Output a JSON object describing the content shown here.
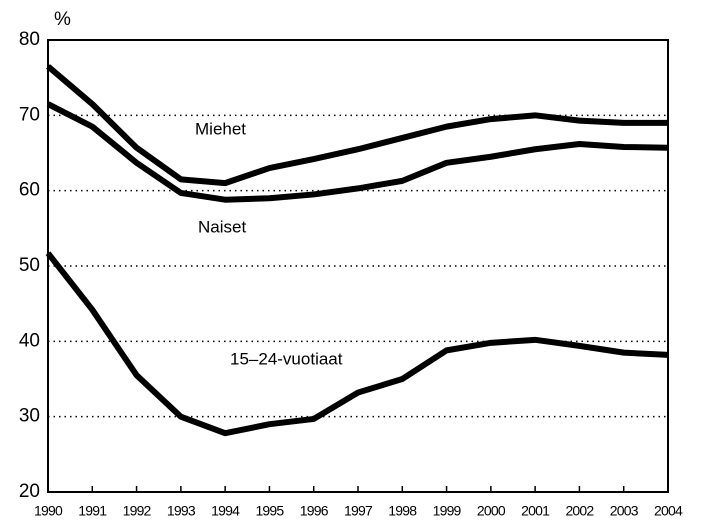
{
  "chart_data": {
    "type": "line",
    "y_label": "%",
    "categories": [
      "1990",
      "1991",
      "1992",
      "1993",
      "1994",
      "1995",
      "1996",
      "1997",
      "1998",
      "1999",
      "2000",
      "2001",
      "2002",
      "2003",
      "2004"
    ],
    "series": [
      {
        "name": "Miehet",
        "color": "#000000",
        "values": [
          76.5,
          71.5,
          65.7,
          61.5,
          61,
          63,
          64.2,
          65.5,
          67,
          68.5,
          69.5,
          70,
          69.3,
          69,
          69
        ]
      },
      {
        "name": "Naiset",
        "color": "#000000",
        "values": [
          71.5,
          68.5,
          63.7,
          59.7,
          58.8,
          59,
          59.5,
          60.3,
          61.3,
          63.7,
          64.5,
          65.5,
          66.2,
          65.8,
          65.7
        ]
      },
      {
        "name": "15–24-vuotiaat",
        "color": "#000000",
        "values": [
          51.7,
          44.2,
          35.5,
          30,
          27.8,
          29,
          29.7,
          33.2,
          35,
          38.8,
          39.8,
          40.2,
          39.4,
          38.5,
          38.2
        ]
      }
    ],
    "ylim": [
      20,
      80
    ],
    "yticks": [
      20,
      30,
      40,
      50,
      60,
      70,
      80
    ],
    "grid": true
  }
}
